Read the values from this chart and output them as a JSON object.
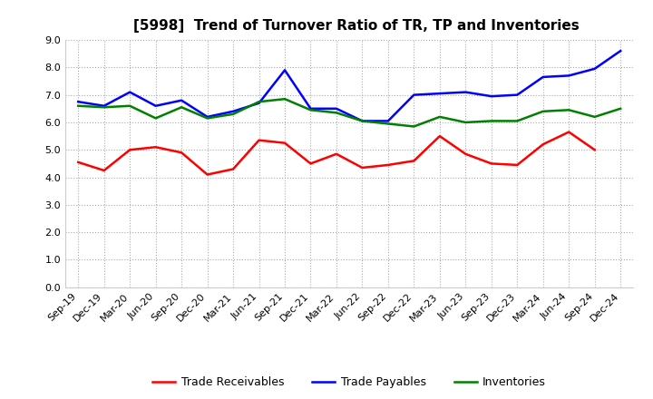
{
  "title": "[5998]  Trend of Turnover Ratio of TR, TP and Inventories",
  "labels": [
    "Sep-19",
    "Dec-19",
    "Mar-20",
    "Jun-20",
    "Sep-20",
    "Dec-20",
    "Mar-21",
    "Jun-21",
    "Sep-21",
    "Dec-21",
    "Mar-22",
    "Jun-22",
    "Sep-22",
    "Dec-22",
    "Mar-23",
    "Jun-23",
    "Sep-23",
    "Dec-23",
    "Mar-24",
    "Jun-24",
    "Sep-24",
    "Dec-24"
  ],
  "trade_receivables": [
    4.55,
    4.25,
    5.0,
    5.1,
    4.9,
    4.1,
    4.3,
    5.35,
    5.25,
    4.5,
    4.85,
    4.35,
    4.45,
    4.6,
    5.5,
    4.85,
    4.5,
    4.45,
    5.2,
    5.65,
    5.0,
    null
  ],
  "trade_payables": [
    6.75,
    6.6,
    7.1,
    6.6,
    6.8,
    6.2,
    6.4,
    6.7,
    7.9,
    6.5,
    6.5,
    6.05,
    6.05,
    7.0,
    7.05,
    7.1,
    6.95,
    7.0,
    7.65,
    7.7,
    7.95,
    8.6
  ],
  "inventories": [
    6.6,
    6.55,
    6.6,
    6.15,
    6.55,
    6.15,
    6.3,
    6.75,
    6.85,
    6.45,
    6.35,
    6.05,
    5.95,
    5.85,
    6.2,
    6.0,
    6.05,
    6.05,
    6.4,
    6.45,
    6.2,
    6.5
  ],
  "ylim": [
    0.0,
    9.0
  ],
  "yticks": [
    0.0,
    1.0,
    2.0,
    3.0,
    4.0,
    5.0,
    6.0,
    7.0,
    8.0,
    9.0
  ],
  "line_colors": {
    "trade_receivables": "#ff0000",
    "trade_payables": "#0000ff",
    "inventories": "#008000"
  },
  "line_width": 1.8,
  "legend_labels": [
    "Trade Receivables",
    "Trade Payables",
    "Inventories"
  ],
  "background_color": "#ffffff",
  "grid_color": "#aaaaaa",
  "title_fontsize": 11,
  "tick_fontsize": 8,
  "legend_fontsize": 9
}
